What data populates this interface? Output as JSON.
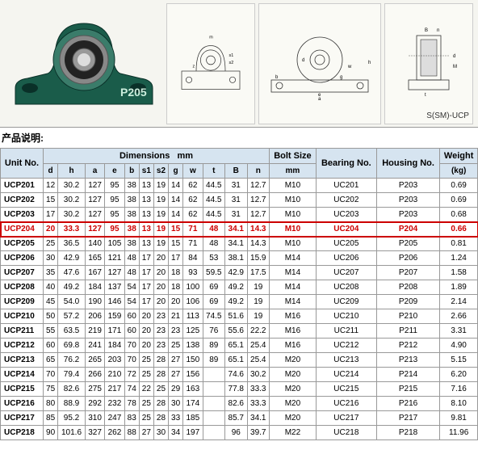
{
  "diagram": {
    "product_label": "P205",
    "model_label": "S(SM)-UCP",
    "dim_labels": [
      "m",
      "z",
      "s1",
      "s2",
      "s1",
      "d",
      "t",
      "M",
      "d",
      "B",
      "n",
      "a",
      "b",
      "e",
      "h",
      "g",
      "w"
    ]
  },
  "section_label": "产品说明:",
  "table": {
    "headers": {
      "unit": "Unit No.",
      "dimensions": "Dimensions",
      "dim_unit": "mm",
      "bolt": "Bolt Size",
      "bolt_unit": "mm",
      "bearing": "Bearing No.",
      "housing": "Housing No.",
      "weight": "Weight",
      "weight_unit": "(kg)"
    },
    "sub_headers": [
      "d",
      "h",
      "a",
      "e",
      "b",
      "s1",
      "s2",
      "g",
      "w",
      "t",
      "B",
      "n"
    ],
    "highlight_row_index": 3,
    "rows": [
      {
        "unit": "UCP201",
        "d": "12",
        "h": "30.2",
        "a": "127",
        "e": "95",
        "b": "38",
        "s1": "13",
        "s2": "19",
        "g": "14",
        "w": "62",
        "t": "44.5",
        "B": "31",
        "n": "12.7",
        "bolt": "M10",
        "bearing": "UC201",
        "housing": "P203",
        "weight": "0.69"
      },
      {
        "unit": "UCP202",
        "d": "15",
        "h": "30.2",
        "a": "127",
        "e": "95",
        "b": "38",
        "s1": "13",
        "s2": "19",
        "g": "14",
        "w": "62",
        "t": "44.5",
        "B": "31",
        "n": "12.7",
        "bolt": "M10",
        "bearing": "UC202",
        "housing": "P203",
        "weight": "0.69"
      },
      {
        "unit": "UCP203",
        "d": "17",
        "h": "30.2",
        "a": "127",
        "e": "95",
        "b": "38",
        "s1": "13",
        "s2": "19",
        "g": "14",
        "w": "62",
        "t": "44.5",
        "B": "31",
        "n": "12.7",
        "bolt": "M10",
        "bearing": "UC203",
        "housing": "P203",
        "weight": "0.68"
      },
      {
        "unit": "UCP204",
        "d": "20",
        "h": "33.3",
        "a": "127",
        "e": "95",
        "b": "38",
        "s1": "13",
        "s2": "19",
        "g": "15",
        "w": "71",
        "t": "48",
        "B": "34.1",
        "n": "14.3",
        "bolt": "M10",
        "bearing": "UC204",
        "housing": "P204",
        "weight": "0.66"
      },
      {
        "unit": "UCP205",
        "d": "25",
        "h": "36.5",
        "a": "140",
        "e": "105",
        "b": "38",
        "s1": "13",
        "s2": "19",
        "g": "15",
        "w": "71",
        "t": "48",
        "B": "34.1",
        "n": "14.3",
        "bolt": "M10",
        "bearing": "UC205",
        "housing": "P205",
        "weight": "0.81"
      },
      {
        "unit": "UCP206",
        "d": "30",
        "h": "42.9",
        "a": "165",
        "e": "121",
        "b": "48",
        "s1": "17",
        "s2": "20",
        "g": "17",
        "w": "84",
        "t": "53",
        "B": "38.1",
        "n": "15.9",
        "bolt": "M14",
        "bearing": "UC206",
        "housing": "P206",
        "weight": "1.24"
      },
      {
        "unit": "UCP207",
        "d": "35",
        "h": "47.6",
        "a": "167",
        "e": "127",
        "b": "48",
        "s1": "17",
        "s2": "20",
        "g": "18",
        "w": "93",
        "t": "59.5",
        "B": "42.9",
        "n": "17.5",
        "bolt": "M14",
        "bearing": "UC207",
        "housing": "P207",
        "weight": "1.58"
      },
      {
        "unit": "UCP208",
        "d": "40",
        "h": "49.2",
        "a": "184",
        "e": "137",
        "b": "54",
        "s1": "17",
        "s2": "20",
        "g": "18",
        "w": "100",
        "t": "69",
        "B": "49.2",
        "n": "19",
        "bolt": "M14",
        "bearing": "UC208",
        "housing": "P208",
        "weight": "1.89"
      },
      {
        "unit": "UCP209",
        "d": "45",
        "h": "54.0",
        "a": "190",
        "e": "146",
        "b": "54",
        "s1": "17",
        "s2": "20",
        "g": "20",
        "w": "106",
        "t": "69",
        "B": "49.2",
        "n": "19",
        "bolt": "M14",
        "bearing": "UC209",
        "housing": "P209",
        "weight": "2.14"
      },
      {
        "unit": "UCP210",
        "d": "50",
        "h": "57.2",
        "a": "206",
        "e": "159",
        "b": "60",
        "s1": "20",
        "s2": "23",
        "g": "21",
        "w": "113",
        "t": "74.5",
        "B": "51.6",
        "n": "19",
        "bolt": "M16",
        "bearing": "UC210",
        "housing": "P210",
        "weight": "2.66"
      },
      {
        "unit": "UCP211",
        "d": "55",
        "h": "63.5",
        "a": "219",
        "e": "171",
        "b": "60",
        "s1": "20",
        "s2": "23",
        "g": "23",
        "w": "125",
        "t": "76",
        "B": "55.6",
        "n": "22.2",
        "bolt": "M16",
        "bearing": "UC211",
        "housing": "P211",
        "weight": "3.31"
      },
      {
        "unit": "UCP212",
        "d": "60",
        "h": "69.8",
        "a": "241",
        "e": "184",
        "b": "70",
        "s1": "20",
        "s2": "23",
        "g": "25",
        "w": "138",
        "t": "89",
        "B": "65.1",
        "n": "25.4",
        "bolt": "M16",
        "bearing": "UC212",
        "housing": "P212",
        "weight": "4.90"
      },
      {
        "unit": "UCP213",
        "d": "65",
        "h": "76.2",
        "a": "265",
        "e": "203",
        "b": "70",
        "s1": "25",
        "s2": "28",
        "g": "27",
        "w": "150",
        "t": "89",
        "B": "65.1",
        "n": "25.4",
        "bolt": "M20",
        "bearing": "UC213",
        "housing": "P213",
        "weight": "5.15"
      },
      {
        "unit": "UCP214",
        "d": "70",
        "h": "79.4",
        "a": "266",
        "e": "210",
        "b": "72",
        "s1": "25",
        "s2": "28",
        "g": "27",
        "w": "156",
        "t": "",
        "B": "74.6",
        "n": "30.2",
        "bolt": "M20",
        "bearing": "UC214",
        "housing": "P214",
        "weight": "6.20"
      },
      {
        "unit": "UCP215",
        "d": "75",
        "h": "82.6",
        "a": "275",
        "e": "217",
        "b": "74",
        "s1": "22",
        "s2": "25",
        "g": "29",
        "w": "163",
        "t": "",
        "B": "77.8",
        "n": "33.3",
        "bolt": "M20",
        "bearing": "UC215",
        "housing": "P215",
        "weight": "7.16"
      },
      {
        "unit": "UCP216",
        "d": "80",
        "h": "88.9",
        "a": "292",
        "e": "232",
        "b": "78",
        "s1": "25",
        "s2": "28",
        "g": "30",
        "w": "174",
        "t": "",
        "B": "82.6",
        "n": "33.3",
        "bolt": "M20",
        "bearing": "UC216",
        "housing": "P216",
        "weight": "8.10"
      },
      {
        "unit": "UCP217",
        "d": "85",
        "h": "95.2",
        "a": "310",
        "e": "247",
        "b": "83",
        "s1": "25",
        "s2": "28",
        "g": "33",
        "w": "185",
        "t": "",
        "B": "85.7",
        "n": "34.1",
        "bolt": "M20",
        "bearing": "UC217",
        "housing": "P217",
        "weight": "9.81"
      },
      {
        "unit": "UCP218",
        "d": "90",
        "h": "101.6",
        "a": "327",
        "e": "262",
        "b": "88",
        "s1": "27",
        "s2": "30",
        "g": "34",
        "w": "197",
        "t": "",
        "B": "96",
        "n": "39.7",
        "bolt": "M22",
        "bearing": "UC218",
        "housing": "P218",
        "weight": "11.96"
      }
    ]
  },
  "styling": {
    "header_bg": "#d6e4f0",
    "border_color": "#999999",
    "highlight_color": "#cc0000",
    "row_bg": "#ffffff",
    "font_size_table": 10,
    "font_size_header": 11
  }
}
